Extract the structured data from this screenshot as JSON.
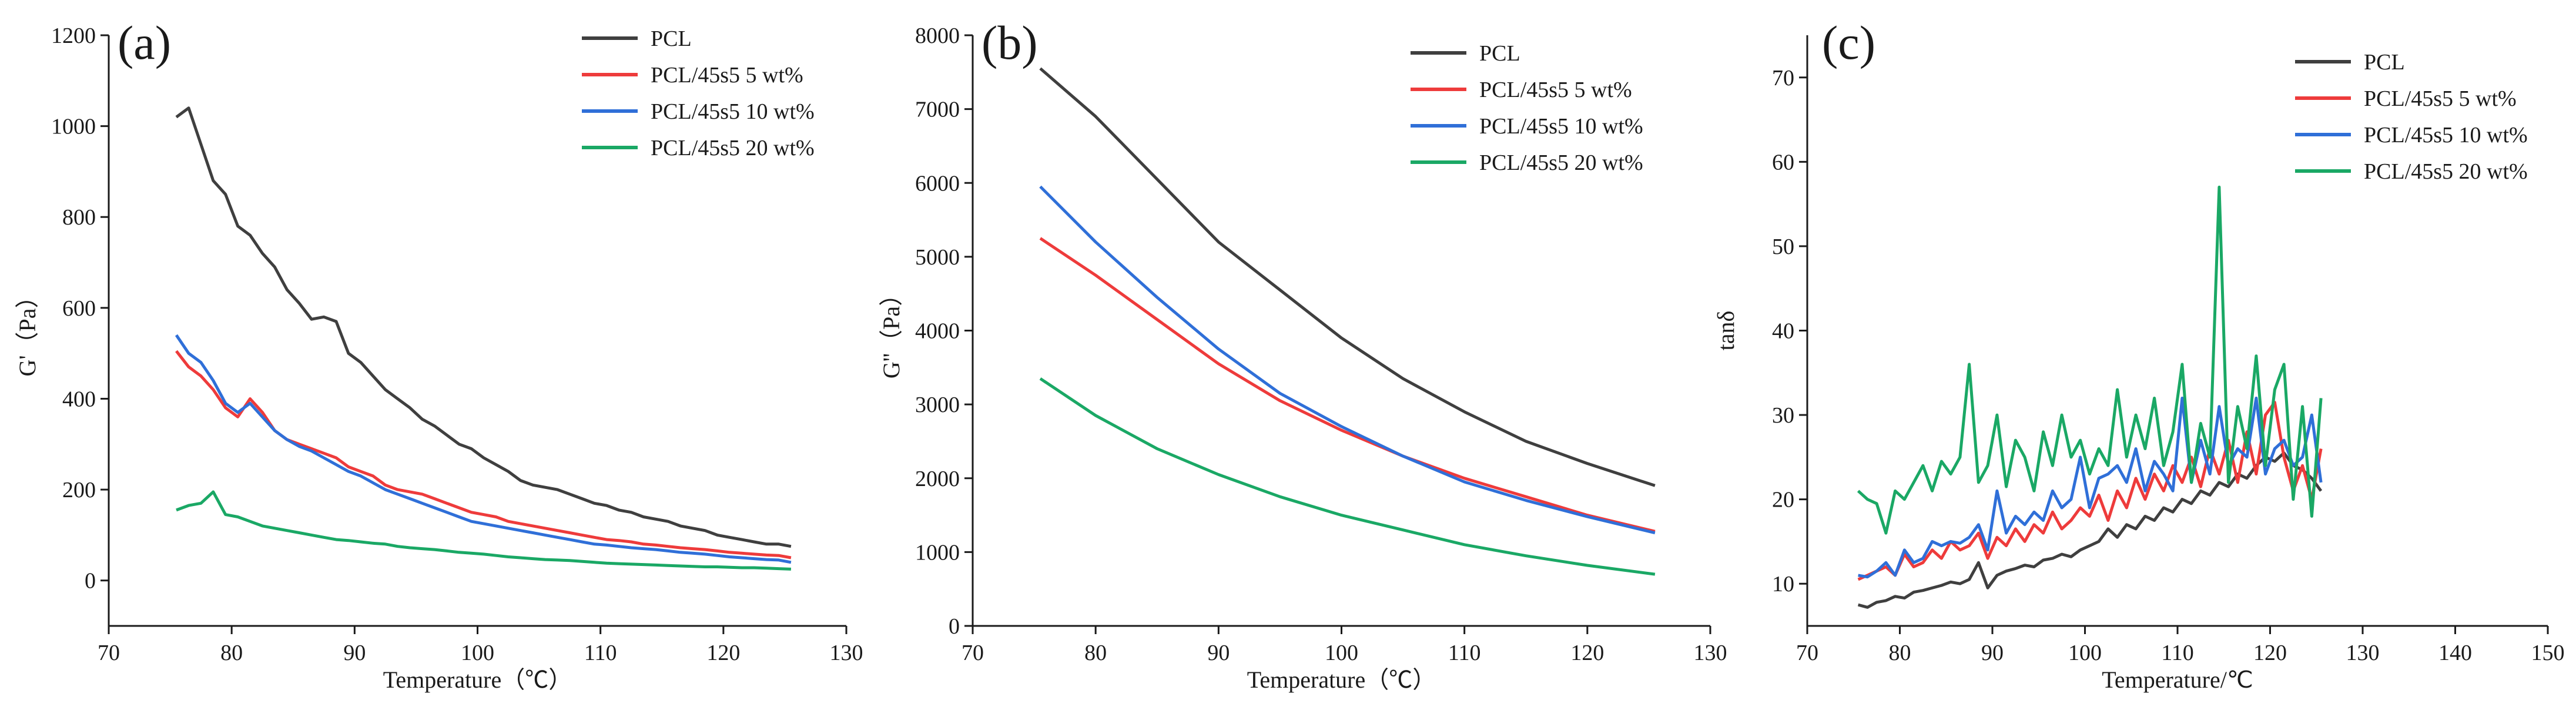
{
  "figure_title": "",
  "legend_labels": [
    "PCL",
    "PCL/45s5 5 wt%",
    "PCL/45s5 10 wt%",
    "PCL/45s5 20 wt%"
  ],
  "series_colors": [
    "#3f3f3f",
    "#ee3b3b",
    "#2f6fd8",
    "#1aa865"
  ],
  "chart_data": [
    {
      "type": "line",
      "panel": "(a)",
      "title": "",
      "xlabel": "Temperature（℃）",
      "ylabel": "G'（Pa）",
      "xlim": [
        70,
        130
      ],
      "ylim": [
        -100,
        1200
      ],
      "xticks": [
        70,
        80,
        90,
        100,
        110,
        120,
        130
      ],
      "yticks": [
        0,
        200,
        400,
        600,
        800,
        1000,
        1200
      ],
      "legend_position": "top-right",
      "x": [
        75.5,
        76.5,
        77.5,
        78.5,
        79.5,
        80.5,
        81.5,
        82.5,
        83.5,
        84.5,
        85.5,
        86.5,
        87.5,
        88.5,
        89.5,
        90.5,
        91.5,
        92.5,
        93.5,
        94.5,
        95.5,
        96.5,
        97.5,
        98.5,
        99.5,
        100.5,
        101.5,
        102.5,
        103.5,
        104.5,
        105.5,
        106.5,
        107.5,
        108.5,
        109.5,
        110.5,
        111.5,
        112.5,
        113.5,
        114.5,
        115.5,
        116.5,
        117.5,
        118.5,
        119.5,
        120.5,
        121.5,
        122.5,
        123.5,
        124.5,
        125.5
      ],
      "series": [
        {
          "name": "PCL",
          "values": [
            1020,
            1040,
            960,
            880,
            850,
            780,
            760,
            720,
            690,
            640,
            610,
            575,
            580,
            570,
            500,
            480,
            450,
            420,
            400,
            380,
            355,
            340,
            320,
            300,
            290,
            270,
            255,
            240,
            220,
            210,
            205,
            200,
            190,
            180,
            170,
            165,
            155,
            150,
            140,
            135,
            130,
            120,
            115,
            110,
            100,
            95,
            90,
            85,
            80,
            80,
            75
          ]
        },
        {
          "name": "PCL/45s5 5 wt%",
          "values": [
            505,
            470,
            450,
            420,
            380,
            360,
            400,
            370,
            330,
            310,
            300,
            290,
            280,
            270,
            250,
            240,
            230,
            210,
            200,
            195,
            190,
            180,
            170,
            160,
            150,
            145,
            140,
            130,
            125,
            120,
            115,
            110,
            105,
            100,
            95,
            90,
            88,
            85,
            80,
            78,
            75,
            72,
            70,
            68,
            65,
            62,
            60,
            58,
            56,
            55,
            50
          ]
        },
        {
          "name": "PCL/45s5 10 wt%",
          "values": [
            540,
            500,
            480,
            440,
            390,
            370,
            390,
            360,
            330,
            310,
            295,
            285,
            270,
            255,
            240,
            230,
            215,
            200,
            190,
            180,
            170,
            160,
            150,
            140,
            130,
            125,
            120,
            115,
            110,
            105,
            100,
            95,
            90,
            85,
            80,
            78,
            75,
            72,
            70,
            68,
            65,
            62,
            60,
            58,
            55,
            52,
            50,
            48,
            46,
            45,
            40
          ]
        },
        {
          "name": "PCL/45s5 20 wt%",
          "values": [
            155,
            165,
            170,
            195,
            145,
            140,
            130,
            120,
            115,
            110,
            105,
            100,
            95,
            90,
            88,
            85,
            82,
            80,
            75,
            72,
            70,
            68,
            65,
            62,
            60,
            58,
            55,
            52,
            50,
            48,
            46,
            45,
            44,
            42,
            40,
            38,
            37,
            36,
            35,
            34,
            33,
            32,
            31,
            30,
            30,
            29,
            28,
            28,
            27,
            26,
            25
          ]
        }
      ]
    },
    {
      "type": "line",
      "panel": "(b)",
      "title": "",
      "xlabel": "Temperature（℃）",
      "ylabel": "G''（Pa）",
      "xlim": [
        70,
        130
      ],
      "ylim": [
        0,
        8000
      ],
      "xticks": [
        70,
        80,
        90,
        100,
        110,
        120,
        130
      ],
      "yticks": [
        0,
        1000,
        2000,
        3000,
        4000,
        5000,
        6000,
        7000,
        8000
      ],
      "legend_position": "top-right",
      "x": [
        75.5,
        80,
        85,
        90,
        95,
        100,
        105,
        110,
        115,
        120,
        125.5
      ],
      "series": [
        {
          "name": "PCL",
          "values": [
            7550,
            6900,
            6050,
            5200,
            4550,
            3900,
            3350,
            2900,
            2500,
            2200,
            1900
          ]
        },
        {
          "name": "PCL/45s5 5 wt%",
          "values": [
            5250,
            4750,
            4150,
            3550,
            3050,
            2650,
            2300,
            2000,
            1750,
            1500,
            1280
          ]
        },
        {
          "name": "PCL/45s5 10 wt%",
          "values": [
            5950,
            5200,
            4450,
            3750,
            3150,
            2700,
            2300,
            1950,
            1700,
            1480,
            1260
          ]
        },
        {
          "name": "PCL/45s5 20 wt%",
          "values": [
            3350,
            2850,
            2400,
            2050,
            1750,
            1500,
            1300,
            1100,
            950,
            820,
            700
          ]
        }
      ]
    },
    {
      "type": "line",
      "panel": "(c)",
      "title": "",
      "xlabel": "Temperature/℃",
      "ylabel": "tanδ",
      "xlim": [
        70,
        150
      ],
      "ylim": [
        5,
        75
      ],
      "xticks": [
        70,
        80,
        90,
        100,
        110,
        120,
        130,
        140,
        150
      ],
      "yticks": [
        10,
        20,
        30,
        40,
        50,
        60,
        70
      ],
      "legend_position": "top-right",
      "x": [
        75.5,
        76.5,
        77.5,
        78.5,
        79.5,
        80.5,
        81.5,
        82.5,
        83.5,
        84.5,
        85.5,
        86.5,
        87.5,
        88.5,
        89.5,
        90.5,
        91.5,
        92.5,
        93.5,
        94.5,
        95.5,
        96.5,
        97.5,
        98.5,
        99.5,
        100.5,
        101.5,
        102.5,
        103.5,
        104.5,
        105.5,
        106.5,
        107.5,
        108.5,
        109.5,
        110.5,
        111.5,
        112.5,
        113.5,
        114.5,
        115.5,
        116.5,
        117.5,
        118.5,
        119.5,
        120.5,
        121.5,
        122.5,
        123.5,
        124.5,
        125.5
      ],
      "series": [
        {
          "name": "PCL",
          "values": [
            7.5,
            7.2,
            7.8,
            8.0,
            8.5,
            8.3,
            9.0,
            9.2,
            9.5,
            9.8,
            10.2,
            10.0,
            10.5,
            12.5,
            9.5,
            11.0,
            11.5,
            11.8,
            12.2,
            12.0,
            12.8,
            13.0,
            13.5,
            13.2,
            14.0,
            14.5,
            15.0,
            16.5,
            15.5,
            17.0,
            16.5,
            18.0,
            17.5,
            19.0,
            18.5,
            20.0,
            19.5,
            21.0,
            20.5,
            22.0,
            21.5,
            23.0,
            22.5,
            24.0,
            25.0,
            24.5,
            25.5,
            24.0,
            23.5,
            22.5,
            21.0
          ]
        },
        {
          "name": "PCL/45s5 5 wt%",
          "values": [
            10.5,
            11.0,
            11.5,
            12.0,
            11.0,
            13.5,
            12.0,
            12.5,
            14.0,
            13.0,
            15.0,
            14.0,
            14.5,
            16.0,
            13.0,
            15.5,
            14.5,
            16.5,
            15.0,
            17.0,
            16.0,
            18.5,
            16.5,
            17.5,
            19.0,
            18.0,
            20.5,
            17.5,
            21.0,
            19.0,
            22.5,
            20.0,
            23.0,
            21.0,
            24.0,
            22.0,
            25.0,
            21.5,
            26.0,
            23.0,
            27.0,
            22.0,
            28.0,
            23.0,
            30.0,
            31.5,
            25.0,
            21.0,
            24.0,
            20.0,
            26.0
          ]
        },
        {
          "name": "PCL/45s5 10 wt%",
          "values": [
            11.0,
            10.8,
            11.5,
            12.5,
            11.0,
            14.0,
            12.5,
            13.0,
            15.0,
            14.5,
            15.0,
            14.8,
            15.5,
            17.0,
            14.0,
            21.0,
            16.0,
            18.0,
            17.0,
            18.5,
            17.5,
            21.0,
            19.0,
            20.0,
            25.0,
            19.0,
            22.5,
            23.0,
            24.0,
            22.0,
            26.0,
            21.0,
            24.5,
            23.0,
            21.0,
            32.0,
            22.0,
            27.0,
            23.0,
            31.0,
            24.0,
            26.0,
            25.0,
            32.0,
            23.0,
            26.0,
            27.0,
            24.0,
            25.0,
            30.0,
            22.0
          ]
        },
        {
          "name": "PCL/45s5 20 wt%",
          "values": [
            21.0,
            20.0,
            19.5,
            16.0,
            21.0,
            20.0,
            22.0,
            24.0,
            21.0,
            24.5,
            23.0,
            25.0,
            36.0,
            22.0,
            24.0,
            30.0,
            21.5,
            27.0,
            25.0,
            21.0,
            28.0,
            24.0,
            30.0,
            25.0,
            27.0,
            23.0,
            26.0,
            24.0,
            33.0,
            25.0,
            30.0,
            26.0,
            32.0,
            24.0,
            28.0,
            36.0,
            22.0,
            29.0,
            25.0,
            57.0,
            22.0,
            31.0,
            26.0,
            37.0,
            24.0,
            33.0,
            36.0,
            20.0,
            31.0,
            18.0,
            32.0
          ]
        }
      ]
    }
  ]
}
